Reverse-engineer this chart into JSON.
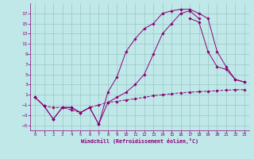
{
  "bg_color": "#c0e8e8",
  "grid_color": "#98c8c8",
  "line_color": "#880077",
  "xlabel": "Windchill (Refroidissement éolien,°C)",
  "xlim": [
    -0.5,
    23.5
  ],
  "ylim": [
    -6,
    19
  ],
  "xticks": [
    0,
    1,
    2,
    3,
    4,
    5,
    6,
    7,
    8,
    9,
    10,
    11,
    12,
    13,
    14,
    15,
    16,
    17,
    18,
    19,
    20,
    21,
    22,
    23
  ],
  "yticks": [
    -5,
    -3,
    -1,
    1,
    3,
    5,
    7,
    9,
    11,
    13,
    15,
    17
  ],
  "curve1_x": [
    0,
    1,
    2,
    3,
    4,
    5,
    6,
    7,
    8,
    9,
    10,
    11,
    12,
    13,
    14,
    15,
    16,
    17,
    18,
    19,
    20,
    21,
    22,
    23
  ],
  "curve1_y": [
    0.5,
    -1.2,
    -3.8,
    -1.5,
    -1.5,
    -2.5,
    -1.5,
    -4.8,
    1.5,
    4.5,
    9.5,
    12,
    14,
    15,
    17,
    17.5,
    17.8,
    17.8,
    17,
    16,
    9.5,
    6.5,
    4,
    3.5
  ],
  "curve2_x": [
    0,
    1,
    2,
    3,
    4,
    5,
    6,
    7,
    8,
    9,
    10,
    11,
    12,
    13,
    14,
    15,
    16,
    17,
    18
  ],
  "curve2_y": [
    0.5,
    -1.2,
    -3.8,
    -1.5,
    -1.5,
    -2.5,
    -1.5,
    -4.8,
    -0.5,
    0.5,
    1.5,
    3,
    5,
    9,
    13,
    15,
    17,
    17.5,
    16
  ],
  "curve3_x": [
    0,
    1,
    2,
    3,
    4,
    5,
    6,
    7,
    8,
    9,
    10,
    11,
    12,
    13,
    14,
    15,
    16,
    17,
    18,
    19,
    20,
    21,
    22,
    23
  ],
  "curve3_y": [
    0.5,
    -1.2,
    -1.5,
    -1.5,
    -2,
    -2.5,
    -1.5,
    -1.0,
    -0.5,
    -0.3,
    0,
    0.2,
    0.5,
    0.8,
    1.0,
    1.2,
    1.4,
    1.5,
    1.6,
    1.7,
    1.8,
    1.9,
    2.0,
    2.0
  ],
  "curve4_x": [
    17,
    18,
    19,
    20,
    21,
    22,
    23
  ],
  "curve4_y": [
    16,
    15.3,
    9.5,
    6.5,
    6.0,
    4.0,
    3.5
  ]
}
